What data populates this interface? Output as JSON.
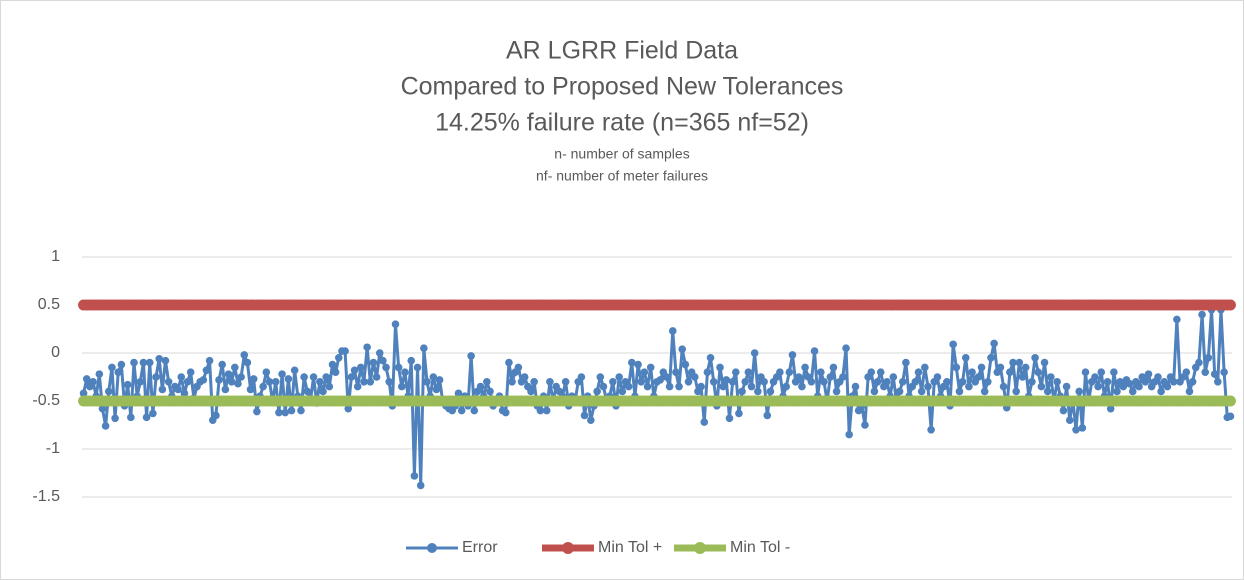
{
  "chart_data": {
    "type": "line",
    "title_lines": [
      "AR LGRR Field Data",
      "Compared to Proposed New Tolerances",
      "14.25% failure rate (n=365 nf=52)"
    ],
    "subtitle_lines": [
      "n- number of samples",
      "nf- number of meter failures"
    ],
    "ylim": [
      -1.5,
      1
    ],
    "yticks": [
      -1.5,
      -1,
      -0.5,
      0,
      0.5,
      1
    ],
    "grid": true,
    "legend": "bottom",
    "series": [
      {
        "name": "Error",
        "color": "#4f81bd",
        "values": [
          -0.42,
          -0.27,
          -0.35,
          -0.3,
          -0.45,
          -0.22,
          -0.58,
          -0.76,
          -0.4,
          -0.15,
          -0.68,
          -0.2,
          -0.12,
          -0.55,
          -0.33,
          -0.67,
          -0.1,
          -0.45,
          -0.3,
          -0.1,
          -0.67,
          -0.1,
          -0.63,
          -0.25,
          -0.06,
          -0.38,
          -0.08,
          -0.3,
          -0.45,
          -0.35,
          -0.38,
          -0.25,
          -0.42,
          -0.3,
          -0.2,
          -0.47,
          -0.35,
          -0.3,
          -0.28,
          -0.18,
          -0.08,
          -0.7,
          -0.65,
          -0.28,
          -0.12,
          -0.38,
          -0.22,
          -0.3,
          -0.15,
          -0.32,
          -0.25,
          -0.02,
          -0.1,
          -0.38,
          -0.27,
          -0.61,
          -0.45,
          -0.35,
          -0.2,
          -0.3,
          -0.5,
          -0.3,
          -0.62,
          -0.22,
          -0.62,
          -0.27,
          -0.6,
          -0.18,
          -0.45,
          -0.6,
          -0.25,
          -0.4,
          -0.5,
          -0.25,
          -0.52,
          -0.3,
          -0.4,
          -0.25,
          -0.35,
          -0.12,
          -0.2,
          -0.05,
          0.02,
          0.02,
          -0.58,
          -0.25,
          -0.18,
          -0.35,
          -0.15,
          -0.3,
          0.06,
          -0.3,
          -0.1,
          -0.25,
          0.0,
          -0.08,
          -0.15,
          -0.3,
          -0.55,
          0.3,
          -0.15,
          -0.35,
          -0.2,
          -0.45,
          -0.08,
          -1.28,
          -0.15,
          -1.38,
          0.05,
          -0.3,
          -0.45,
          -0.25,
          -0.38,
          -0.28,
          -0.5,
          -0.55,
          -0.58,
          -0.6,
          -0.55,
          -0.42,
          -0.6,
          -0.45,
          -0.55,
          -0.03,
          -0.6,
          -0.4,
          -0.35,
          -0.45,
          -0.3,
          -0.4,
          -0.55,
          -0.5,
          -0.45,
          -0.6,
          -0.62,
          -0.1,
          -0.3,
          -0.2,
          -0.15,
          -0.3,
          -0.25,
          -0.35,
          -0.4,
          -0.3,
          -0.55,
          -0.6,
          -0.45,
          -0.6,
          -0.3,
          -0.5,
          -0.35,
          -0.4,
          -0.45,
          -0.3,
          -0.55,
          -0.45,
          -0.5,
          -0.3,
          -0.25,
          -0.65,
          -0.45,
          -0.7,
          -0.55,
          -0.4,
          -0.25,
          -0.35,
          -0.5,
          -0.45,
          -0.3,
          -0.55,
          -0.25,
          -0.4,
          -0.3,
          -0.35,
          -0.1,
          -0.45,
          -0.12,
          -0.3,
          -0.2,
          -0.35,
          -0.15,
          -0.45,
          -0.3,
          -0.28,
          -0.2,
          -0.25,
          -0.35,
          0.23,
          -0.2,
          -0.35,
          0.04,
          -0.12,
          -0.3,
          -0.2,
          -0.25,
          -0.4,
          -0.35,
          -0.72,
          -0.2,
          -0.05,
          -0.3,
          -0.55,
          -0.15,
          -0.35,
          -0.28,
          -0.68,
          -0.3,
          -0.2,
          -0.63,
          -0.4,
          -0.3,
          -0.2,
          -0.35,
          0.0,
          -0.4,
          -0.25,
          -0.3,
          -0.65,
          -0.4,
          -0.3,
          -0.25,
          -0.2,
          -0.45,
          -0.35,
          -0.2,
          -0.02,
          -0.3,
          -0.25,
          -0.35,
          -0.15,
          -0.25,
          -0.3,
          0.02,
          -0.45,
          -0.2,
          -0.3,
          -0.5,
          -0.25,
          -0.15,
          -0.4,
          -0.3,
          -0.25,
          0.05,
          -0.85,
          -0.45,
          -0.35,
          -0.6,
          -0.55,
          -0.75,
          -0.25,
          -0.2,
          -0.4,
          -0.3,
          -0.2,
          -0.35,
          -0.3,
          -0.45,
          -0.25,
          -0.5,
          -0.4,
          -0.3,
          -0.1,
          -0.45,
          -0.35,
          -0.3,
          -0.2,
          -0.4,
          -0.15,
          -0.35,
          -0.8,
          -0.3,
          -0.25,
          -0.45,
          -0.35,
          -0.3,
          -0.55,
          0.09,
          -0.15,
          -0.4,
          -0.3,
          -0.05,
          -0.35,
          -0.2,
          -0.3,
          -0.25,
          -0.15,
          -0.4,
          -0.3,
          -0.05,
          0.1,
          -0.2,
          -0.15,
          -0.35,
          -0.57,
          -0.2,
          -0.1,
          -0.4,
          -0.1,
          -0.25,
          -0.15,
          -0.45,
          -0.3,
          -0.05,
          -0.2,
          -0.35,
          -0.1,
          -0.4,
          -0.25,
          -0.5,
          -0.3,
          -0.45,
          -0.6,
          -0.35,
          -0.7,
          -0.5,
          -0.8,
          -0.4,
          -0.78,
          -0.2,
          -0.5,
          -0.3,
          -0.25,
          -0.35,
          -0.2,
          -0.45,
          -0.3,
          -0.58,
          -0.2,
          -0.4,
          -0.3,
          -0.35,
          -0.28,
          -0.32,
          -0.4,
          -0.3,
          -0.35,
          -0.25,
          -0.3,
          -0.22,
          -0.35,
          -0.3,
          -0.25,
          -0.4,
          -0.3,
          -0.35,
          -0.25,
          -0.3,
          0.35,
          -0.3,
          -0.25,
          -0.2,
          -0.4,
          -0.3,
          -0.15,
          -0.1,
          0.4,
          -0.2,
          -0.05,
          0.45,
          -0.22,
          -0.3,
          0.45,
          -0.2,
          -0.67,
          -0.66
        ]
      },
      {
        "name": "Min Tol +",
        "color": "#c0504d",
        "values": [
          0.5,
          0.5,
          0.5,
          0.5,
          0.5,
          0.5,
          0.5,
          0.5,
          0.5,
          0.5,
          0.5,
          0.5,
          0.5,
          0.5,
          0.5,
          0.5,
          0.5,
          0.5,
          0.5,
          0.5,
          0.5,
          0.5,
          0.5,
          0.5,
          0.5,
          0.5,
          0.5,
          0.5,
          0.5,
          0.5,
          0.5,
          0.5,
          0.5,
          0.5,
          0.5,
          0.5,
          0.5,
          0.5,
          0.5,
          0.5,
          0.5,
          0.5,
          0.5,
          0.5,
          0.5,
          0.5,
          0.5,
          0.5,
          0.5,
          0.5,
          0.5,
          0.5,
          0.5,
          0.5,
          0.5,
          0.5,
          0.5,
          0.5,
          0.5,
          0.5,
          0.5,
          0.5,
          0.5,
          0.5,
          0.5,
          0.5,
          0.5,
          0.5,
          0.5,
          0.5,
          0.5,
          0.5,
          0.5,
          0.5,
          0.5,
          0.5,
          0.5,
          0.5,
          0.5,
          0.5,
          0.5,
          0.5,
          0.5,
          0.5,
          0.5,
          0.5,
          0.5,
          0.5,
          0.5,
          0.5,
          0.5,
          0.5,
          0.5,
          0.5,
          0.5,
          0.5,
          0.5,
          0.5,
          0.5,
          0.5,
          0.5,
          0.5,
          0.5,
          0.5,
          0.5,
          0.5,
          0.5,
          0.5,
          0.5,
          0.5,
          0.5,
          0.5,
          0.5,
          0.5,
          0.5,
          0.5,
          0.5,
          0.5,
          0.5,
          0.5,
          0.5,
          0.5,
          0.5,
          0.5,
          0.5,
          0.5,
          0.5,
          0.5,
          0.5,
          0.5,
          0.5,
          0.5,
          0.5,
          0.5,
          0.5,
          0.5,
          0.5,
          0.5,
          0.5,
          0.5,
          0.5,
          0.5,
          0.5,
          0.5,
          0.5,
          0.5,
          0.5,
          0.5,
          0.5,
          0.5,
          0.5,
          0.5,
          0.5,
          0.5,
          0.5,
          0.5,
          0.5,
          0.5,
          0.5,
          0.5,
          0.5,
          0.5,
          0.5,
          0.5,
          0.5,
          0.5,
          0.5,
          0.5,
          0.5,
          0.5,
          0.5,
          0.5,
          0.5,
          0.5,
          0.5,
          0.5,
          0.5,
          0.5,
          0.5,
          0.5,
          0.5,
          0.5,
          0.5,
          0.5,
          0.5,
          0.5,
          0.5,
          0.5,
          0.5,
          0.5,
          0.5,
          0.5,
          0.5,
          0.5,
          0.5,
          0.5,
          0.5,
          0.5,
          0.5,
          0.5,
          0.5,
          0.5,
          0.5,
          0.5,
          0.5,
          0.5,
          0.5,
          0.5,
          0.5,
          0.5,
          0.5,
          0.5,
          0.5,
          0.5,
          0.5,
          0.5,
          0.5,
          0.5,
          0.5,
          0.5,
          0.5,
          0.5,
          0.5,
          0.5,
          0.5,
          0.5,
          0.5,
          0.5,
          0.5,
          0.5,
          0.5,
          0.5,
          0.5,
          0.5,
          0.5,
          0.5,
          0.5,
          0.5,
          0.5,
          0.5,
          0.5,
          0.5,
          0.5,
          0.5,
          0.5,
          0.5,
          0.5,
          0.5,
          0.5,
          0.5,
          0.5,
          0.5,
          0.5,
          0.5,
          0.5,
          0.5,
          0.5,
          0.5,
          0.5,
          0.5,
          0.5,
          0.5,
          0.5,
          0.5,
          0.5,
          0.5,
          0.5,
          0.5,
          0.5,
          0.5,
          0.5,
          0.5,
          0.5,
          0.5,
          0.5,
          0.5,
          0.5,
          0.5,
          0.5,
          0.5,
          0.5,
          0.5,
          0.5,
          0.5,
          0.5,
          0.5,
          0.5,
          0.5,
          0.5,
          0.5,
          0.5,
          0.5,
          0.5,
          0.5,
          0.5,
          0.5,
          0.5,
          0.5,
          0.5,
          0.5,
          0.5,
          0.5,
          0.5,
          0.5,
          0.5,
          0.5,
          0.5,
          0.5,
          0.5,
          0.5,
          0.5,
          0.5,
          0.5,
          0.5,
          0.5,
          0.5,
          0.5,
          0.5,
          0.5,
          0.5,
          0.5,
          0.5,
          0.5,
          0.5,
          0.5,
          0.5,
          0.5,
          0.5,
          0.5,
          0.5,
          0.5,
          0.5,
          0.5,
          0.5,
          0.5,
          0.5,
          0.5,
          0.5,
          0.5,
          0.5,
          0.5,
          0.5,
          0.5,
          0.5,
          0.5,
          0.5,
          0.5,
          0.5,
          0.5,
          0.5,
          0.5,
          0.5,
          0.5,
          0.5,
          0.5,
          0.5,
          0.5,
          0.5,
          0.5,
          0.5,
          0.5,
          0.5,
          0.5,
          0.5,
          0.5
        ]
      },
      {
        "name": "Min Tol -",
        "color": "#9bbb59",
        "values": [
          -0.5,
          -0.5,
          -0.5,
          -0.5,
          -0.5,
          -0.5,
          -0.5,
          -0.5,
          -0.5,
          -0.5,
          -0.5,
          -0.5,
          -0.5,
          -0.5,
          -0.5,
          -0.5,
          -0.5,
          -0.5,
          -0.5,
          -0.5,
          -0.5,
          -0.5,
          -0.5,
          -0.5,
          -0.5,
          -0.5,
          -0.5,
          -0.5,
          -0.5,
          -0.5,
          -0.5,
          -0.5,
          -0.5,
          -0.5,
          -0.5,
          -0.5,
          -0.5,
          -0.5,
          -0.5,
          -0.5,
          -0.5,
          -0.5,
          -0.5,
          -0.5,
          -0.5,
          -0.5,
          -0.5,
          -0.5,
          -0.5,
          -0.5,
          -0.5,
          -0.5,
          -0.5,
          -0.5,
          -0.5,
          -0.5,
          -0.5,
          -0.5,
          -0.5,
          -0.5,
          -0.5,
          -0.5,
          -0.5,
          -0.5,
          -0.5,
          -0.5,
          -0.5,
          -0.5,
          -0.5,
          -0.5,
          -0.5,
          -0.5,
          -0.5,
          -0.5,
          -0.5,
          -0.5,
          -0.5,
          -0.5,
          -0.5,
          -0.5,
          -0.5,
          -0.5,
          -0.5,
          -0.5,
          -0.5,
          -0.5,
          -0.5,
          -0.5,
          -0.5,
          -0.5,
          -0.5,
          -0.5,
          -0.5,
          -0.5,
          -0.5,
          -0.5,
          -0.5,
          -0.5,
          -0.5,
          -0.5,
          -0.5,
          -0.5,
          -0.5,
          -0.5,
          -0.5,
          -0.5,
          -0.5,
          -0.5,
          -0.5,
          -0.5,
          -0.5,
          -0.5,
          -0.5,
          -0.5,
          -0.5,
          -0.5,
          -0.5,
          -0.5,
          -0.5,
          -0.5,
          -0.5,
          -0.5,
          -0.5,
          -0.5,
          -0.5,
          -0.5,
          -0.5,
          -0.5,
          -0.5,
          -0.5,
          -0.5,
          -0.5,
          -0.5,
          -0.5,
          -0.5,
          -0.5,
          -0.5,
          -0.5,
          -0.5,
          -0.5,
          -0.5,
          -0.5,
          -0.5,
          -0.5,
          -0.5,
          -0.5,
          -0.5,
          -0.5,
          -0.5,
          -0.5,
          -0.5,
          -0.5,
          -0.5,
          -0.5,
          -0.5,
          -0.5,
          -0.5,
          -0.5,
          -0.5,
          -0.5,
          -0.5,
          -0.5,
          -0.5,
          -0.5,
          -0.5,
          -0.5,
          -0.5,
          -0.5,
          -0.5,
          -0.5,
          -0.5,
          -0.5,
          -0.5,
          -0.5,
          -0.5,
          -0.5,
          -0.5,
          -0.5,
          -0.5,
          -0.5,
          -0.5,
          -0.5,
          -0.5,
          -0.5,
          -0.5,
          -0.5,
          -0.5,
          -0.5,
          -0.5,
          -0.5,
          -0.5,
          -0.5,
          -0.5,
          -0.5,
          -0.5,
          -0.5,
          -0.5,
          -0.5,
          -0.5,
          -0.5,
          -0.5,
          -0.5,
          -0.5,
          -0.5,
          -0.5,
          -0.5,
          -0.5,
          -0.5,
          -0.5,
          -0.5,
          -0.5,
          -0.5,
          -0.5,
          -0.5,
          -0.5,
          -0.5,
          -0.5,
          -0.5,
          -0.5,
          -0.5,
          -0.5,
          -0.5,
          -0.5,
          -0.5,
          -0.5,
          -0.5,
          -0.5,
          -0.5,
          -0.5,
          -0.5,
          -0.5,
          -0.5,
          -0.5,
          -0.5,
          -0.5,
          -0.5,
          -0.5,
          -0.5,
          -0.5,
          -0.5,
          -0.5,
          -0.5,
          -0.5,
          -0.5,
          -0.5,
          -0.5,
          -0.5,
          -0.5,
          -0.5,
          -0.5,
          -0.5,
          -0.5,
          -0.5,
          -0.5,
          -0.5,
          -0.5,
          -0.5,
          -0.5,
          -0.5,
          -0.5,
          -0.5,
          -0.5,
          -0.5,
          -0.5,
          -0.5,
          -0.5,
          -0.5,
          -0.5,
          -0.5,
          -0.5,
          -0.5,
          -0.5,
          -0.5,
          -0.5,
          -0.5,
          -0.5,
          -0.5,
          -0.5,
          -0.5,
          -0.5,
          -0.5,
          -0.5,
          -0.5,
          -0.5,
          -0.5,
          -0.5,
          -0.5,
          -0.5,
          -0.5,
          -0.5,
          -0.5,
          -0.5,
          -0.5,
          -0.5,
          -0.5,
          -0.5,
          -0.5,
          -0.5,
          -0.5,
          -0.5,
          -0.5,
          -0.5,
          -0.5,
          -0.5,
          -0.5,
          -0.5,
          -0.5,
          -0.5,
          -0.5,
          -0.5,
          -0.5,
          -0.5,
          -0.5,
          -0.5,
          -0.5,
          -0.5,
          -0.5,
          -0.5,
          -0.5,
          -0.5,
          -0.5,
          -0.5,
          -0.5,
          -0.5,
          -0.5,
          -0.5,
          -0.5,
          -0.5,
          -0.5,
          -0.5,
          -0.5,
          -0.5,
          -0.5,
          -0.5,
          -0.5,
          -0.5,
          -0.5,
          -0.5,
          -0.5,
          -0.5,
          -0.5,
          -0.5,
          -0.5,
          -0.5,
          -0.5,
          -0.5,
          -0.5,
          -0.5,
          -0.5,
          -0.5,
          -0.5,
          -0.5,
          -0.5,
          -0.5,
          -0.5,
          -0.5,
          -0.5,
          -0.5,
          -0.5,
          -0.5,
          -0.5,
          -0.5,
          -0.5,
          -0.5,
          -0.5
        ]
      }
    ]
  }
}
